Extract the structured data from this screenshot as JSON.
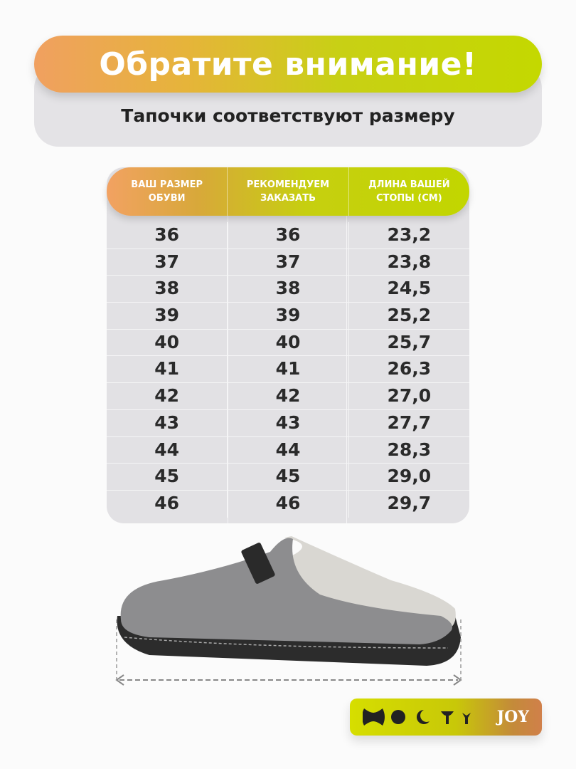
{
  "header": {
    "title": "Обратите внимание!",
    "subtitle": "Тапочки соответствуют размеру"
  },
  "size_table": {
    "columns": [
      "ВАШ РАЗМЕР\nОБУВИ",
      "РЕКОМЕНДУЕМ\nЗАКАЗАТЬ",
      "ДЛИНА ВАШЕЙ\nСТОПЫ (СМ)"
    ],
    "rows": [
      [
        "36",
        "36",
        "23,2"
      ],
      [
        "37",
        "37",
        "23,8"
      ],
      [
        "38",
        "38",
        "24,5"
      ],
      [
        "39",
        "39",
        "25,2"
      ],
      [
        "40",
        "40",
        "25,7"
      ],
      [
        "41",
        "41",
        "26,3"
      ],
      [
        "42",
        "42",
        "27,0"
      ],
      [
        "43",
        "43",
        "27,7"
      ],
      [
        "44",
        "44",
        "28,3"
      ],
      [
        "45",
        "45",
        "29,0"
      ],
      [
        "46",
        "46",
        "29,7"
      ]
    ]
  },
  "product_image": {
    "icon": "felt-slipper-with-length-arrow"
  },
  "brand": {
    "logo_text": "JOY"
  },
  "colors": {
    "accent_orange": "#f0a060",
    "accent_lime": "#c4d800",
    "table_bg": "#e2e1e4"
  }
}
